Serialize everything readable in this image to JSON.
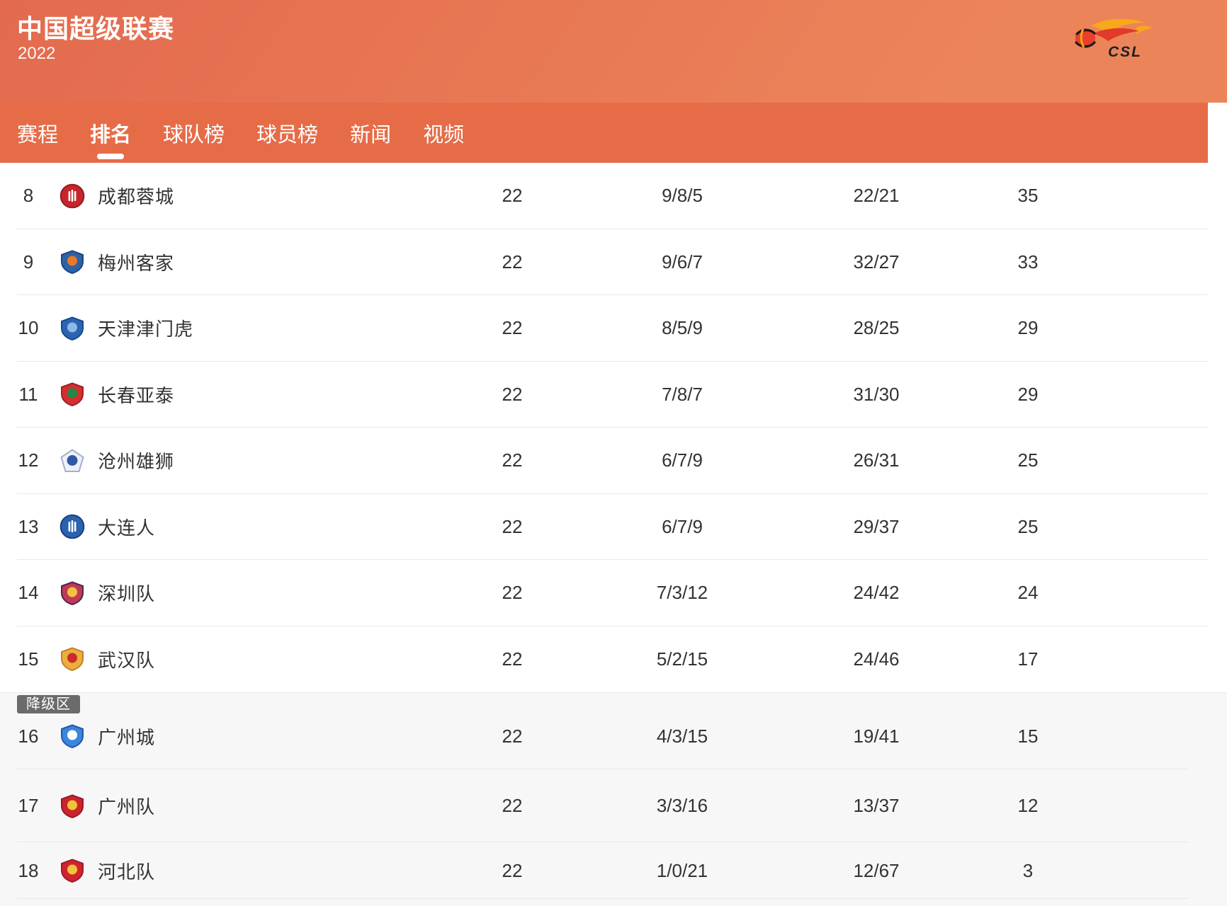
{
  "header": {
    "title": "中国超级联赛",
    "season": "2022",
    "logo_text": "CSL"
  },
  "nav": {
    "items": [
      {
        "label": "赛程",
        "active": false
      },
      {
        "label": "排名",
        "active": true
      },
      {
        "label": "球队榜",
        "active": false
      },
      {
        "label": "球员榜",
        "active": false
      },
      {
        "label": "新闻",
        "active": false
      },
      {
        "label": "视频",
        "active": false
      }
    ]
  },
  "table": {
    "relegation_label": "降级区",
    "teams": [
      {
        "rank": "8",
        "name": "成都蓉城",
        "played": "22",
        "wdl": "9/8/5",
        "goals": "22/21",
        "points": "35",
        "zone": "normal",
        "badge": {
          "shape": "circle",
          "colors": [
            "#c5262c",
            "#931c21",
            "#ffffff"
          ]
        }
      },
      {
        "rank": "9",
        "name": "梅州客家",
        "played": "22",
        "wdl": "9/6/7",
        "goals": "32/27",
        "points": "33",
        "zone": "normal",
        "badge": {
          "shape": "shield",
          "colors": [
            "#2f61a7",
            "#1d4583",
            "#e87a22"
          ]
        }
      },
      {
        "rank": "10",
        "name": "天津津门虎",
        "played": "22",
        "wdl": "8/5/9",
        "goals": "28/25",
        "points": "29",
        "zone": "normal",
        "badge": {
          "shape": "shield",
          "colors": [
            "#2a64b2",
            "#174a8c",
            "#8db9e8"
          ]
        }
      },
      {
        "rank": "11",
        "name": "长春亚泰",
        "played": "22",
        "wdl": "7/8/7",
        "goals": "31/30",
        "points": "29",
        "zone": "normal",
        "badge": {
          "shape": "shield",
          "colors": [
            "#d32f32",
            "#a32023",
            "#1f8a45"
          ]
        }
      },
      {
        "rank": "12",
        "name": "沧州雄狮",
        "played": "22",
        "wdl": "6/7/9",
        "goals": "26/31",
        "points": "25",
        "zone": "normal",
        "badge": {
          "shape": "pentagon",
          "colors": [
            "#eef2f8",
            "#9fb0cf",
            "#2d59a8"
          ]
        }
      },
      {
        "rank": "13",
        "name": "大连人",
        "played": "22",
        "wdl": "6/7/9",
        "goals": "29/37",
        "points": "25",
        "zone": "normal",
        "badge": {
          "shape": "circle",
          "colors": [
            "#2a62b0",
            "#173f7d",
            "#ffffff"
          ]
        }
      },
      {
        "rank": "14",
        "name": "深圳队",
        "played": "22",
        "wdl": "7/3/12",
        "goals": "24/42",
        "points": "24",
        "zone": "normal",
        "badge": {
          "shape": "shield",
          "colors": [
            "#c03a55",
            "#4c2752",
            "#f1c340"
          ]
        }
      },
      {
        "rank": "15",
        "name": "武汉队",
        "played": "22",
        "wdl": "5/2/15",
        "goals": "24/46",
        "points": "17",
        "zone": "normal",
        "badge": {
          "shape": "shield",
          "colors": [
            "#ecaf3c",
            "#c67f28",
            "#cb2b2b"
          ]
        }
      },
      {
        "rank": "16",
        "name": "广州城",
        "played": "22",
        "wdl": "4/3/15",
        "goals": "19/41",
        "points": "15",
        "zone": "relegation",
        "badge": {
          "shape": "shield",
          "colors": [
            "#3c85da",
            "#2058ae",
            "#ffffff"
          ]
        }
      },
      {
        "rank": "17",
        "name": "广州队",
        "played": "22",
        "wdl": "3/3/16",
        "goals": "13/37",
        "points": "12",
        "zone": "relegation",
        "badge": {
          "shape": "shield",
          "colors": [
            "#ca242c",
            "#9c1a22",
            "#f2c437"
          ]
        }
      },
      {
        "rank": "18",
        "name": "河北队",
        "played": "22",
        "wdl": "1/0/21",
        "goals": "12/67",
        "points": "3",
        "zone": "relegation",
        "badge": {
          "shape": "shield",
          "colors": [
            "#d0232f",
            "#a21a25",
            "#f3c53d"
          ]
        }
      }
    ]
  },
  "theme": {
    "header-a": "#e36a4e",
    "header-b": "#ec845a",
    "nav-bg": "#e66c48",
    "underline": "#ffffff",
    "row-text": "#333333",
    "divider": "#e9e9eb",
    "releg-bg": "#f7f7f8",
    "label-bg": "#6b6b6b",
    "logo-flame-yellow": "#f7a81b",
    "logo-flame-red": "#e23a27",
    "logo-ball-red": "#e8402d"
  }
}
